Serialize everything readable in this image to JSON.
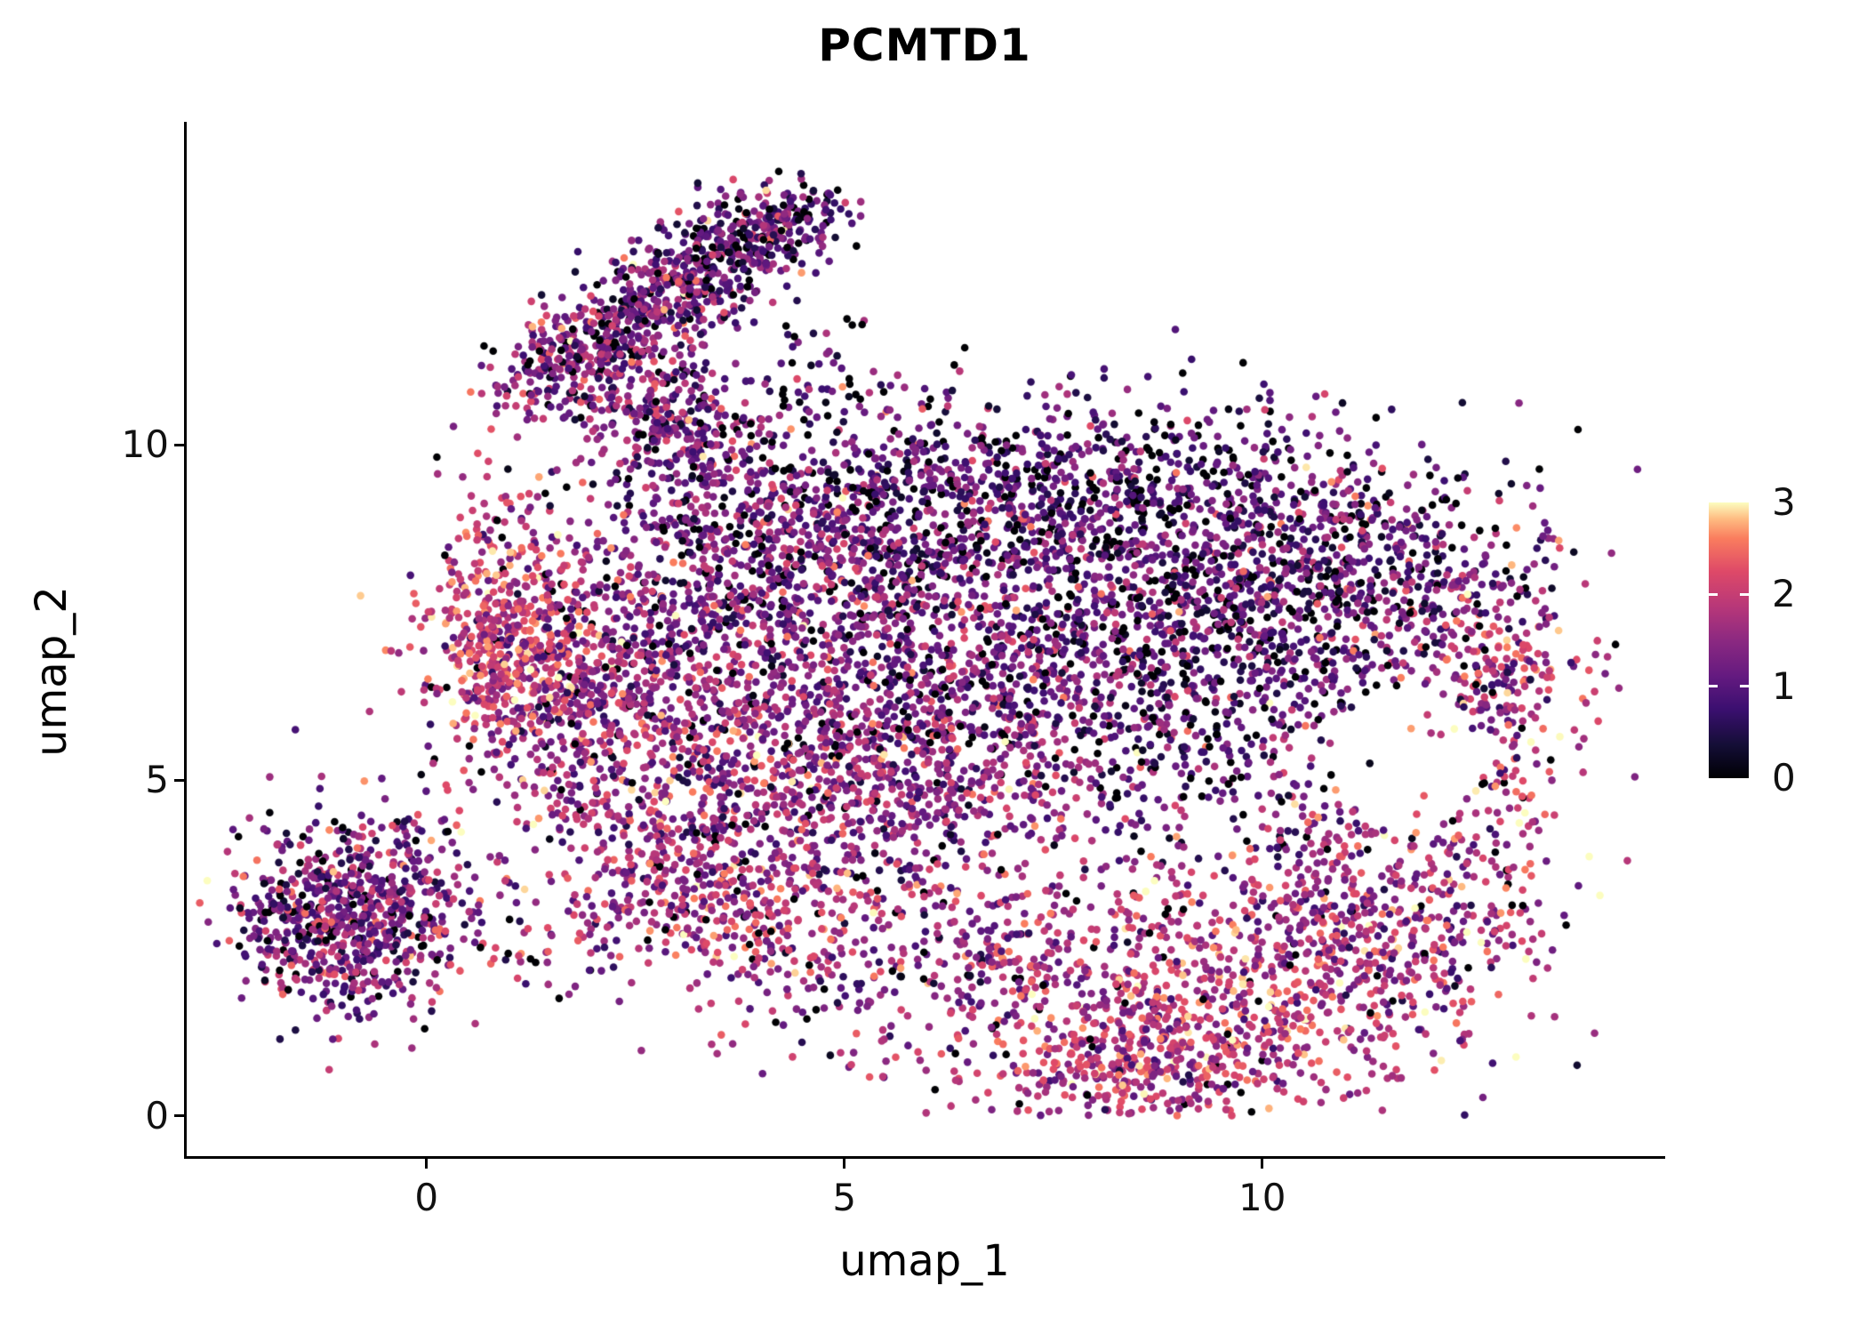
{
  "page": {
    "background": "#ffffff"
  },
  "chart_data": {
    "type": "scatter",
    "title": "PCMTD1",
    "xlabel": "umap_1",
    "ylabel": "umap_2",
    "x_tick_labels": [
      "0",
      "5",
      "10"
    ],
    "x_tick_values": [
      0,
      5,
      10
    ],
    "y_tick_labels": [
      "0",
      "5",
      "10"
    ],
    "y_tick_values": [
      0,
      5,
      10
    ],
    "xlim": [
      -2.87,
      14.79
    ],
    "ylim": [
      -0.6,
      14.77
    ],
    "grid": false,
    "legend": {
      "position": "right",
      "min": 0,
      "max": 3,
      "tick_labels": [
        "3",
        "2",
        "1",
        "0"
      ],
      "tick_values": [
        3,
        2,
        1,
        0
      ],
      "inner_tick_values": [
        1,
        2
      ]
    },
    "colormap_name": "magma",
    "colormap_stops": [
      [
        0.0,
        "#000004"
      ],
      [
        0.12,
        "#140e36"
      ],
      [
        0.25,
        "#3b0f70"
      ],
      [
        0.37,
        "#641a80"
      ],
      [
        0.5,
        "#8c2981"
      ],
      [
        0.62,
        "#b73779"
      ],
      [
        0.75,
        "#de4968"
      ],
      [
        0.87,
        "#fa7d5e"
      ],
      [
        0.94,
        "#febb81"
      ],
      [
        1.0,
        "#fcfdbf"
      ]
    ],
    "point_radius": 4.3,
    "seed": 20240612,
    "clusters": [
      {
        "cx": -0.9,
        "cy": 3.0,
        "sx": 0.72,
        "sy": 0.68,
        "rot": 0,
        "n": 750,
        "vm": 1.3,
        "vs": 0.65,
        "pz": 0.05
      },
      {
        "cx": 1.7,
        "cy": 2.6,
        "sx": 0.5,
        "sy": 0.45,
        "rot": 0,
        "n": 60,
        "vm": 1.5,
        "vs": 0.6,
        "pz": 0.05
      },
      {
        "cx": 1.75,
        "cy": 11.2,
        "sx": 0.5,
        "sy": 0.38,
        "rot": 35,
        "n": 230,
        "vm": 1.45,
        "vs": 0.6,
        "pz": 0.05
      },
      {
        "cx": 2.6,
        "cy": 12.0,
        "sx": 0.55,
        "sy": 0.38,
        "rot": 40,
        "n": 260,
        "vm": 1.2,
        "vs": 0.6,
        "pz": 0.07
      },
      {
        "cx": 3.5,
        "cy": 12.8,
        "sx": 0.6,
        "sy": 0.4,
        "rot": 35,
        "n": 280,
        "vm": 1.2,
        "vs": 0.6,
        "pz": 0.08
      },
      {
        "cx": 4.3,
        "cy": 13.2,
        "sx": 0.42,
        "sy": 0.3,
        "rot": 30,
        "n": 150,
        "vm": 1.1,
        "vs": 0.6,
        "pz": 0.1
      },
      {
        "cx": 2.75,
        "cy": 10.6,
        "sx": 0.5,
        "sy": 0.42,
        "rot": 20,
        "n": 160,
        "vm": 1.3,
        "vs": 0.6,
        "pz": 0.06
      },
      {
        "cx": 3.3,
        "cy": 9.9,
        "sx": 0.5,
        "sy": 0.4,
        "rot": 0,
        "n": 120,
        "vm": 1.2,
        "vs": 0.6,
        "pz": 0.08
      },
      {
        "cx": 4.9,
        "cy": 11.0,
        "sx": 0.5,
        "sy": 0.45,
        "rot": 0,
        "n": 55,
        "vm": 1.1,
        "vs": 0.6,
        "pz": 0.15
      },
      {
        "cx": 0.95,
        "cy": 7.1,
        "sx": 0.52,
        "sy": 1.0,
        "rot": 0,
        "n": 460,
        "vm": 2.1,
        "vs": 0.5,
        "pz": 0.02
      },
      {
        "cx": 2.3,
        "cy": 6.3,
        "sx": 1.0,
        "sy": 1.2,
        "rot": 0,
        "n": 780,
        "vm": 1.5,
        "vs": 0.6,
        "pz": 0.05
      },
      {
        "cx": 4.3,
        "cy": 8.6,
        "sx": 1.4,
        "sy": 0.9,
        "rot": 0,
        "n": 850,
        "vm": 1.25,
        "vs": 0.6,
        "pz": 0.09
      },
      {
        "cx": 7.8,
        "cy": 9.2,
        "sx": 1.9,
        "sy": 0.75,
        "rot": 0,
        "n": 900,
        "vm": 0.95,
        "vs": 0.6,
        "pz": 0.13
      },
      {
        "cx": 5.9,
        "cy": 6.5,
        "sx": 1.7,
        "sy": 1.2,
        "rot": 0,
        "n": 1150,
        "vm": 1.35,
        "vs": 0.6,
        "pz": 0.06
      },
      {
        "cx": 9.3,
        "cy": 7.0,
        "sx": 1.5,
        "sy": 1.3,
        "rot": 0,
        "n": 1050,
        "vm": 1.0,
        "vs": 0.65,
        "pz": 0.12
      },
      {
        "cx": 12.7,
        "cy": 5.9,
        "sx": 0.55,
        "sy": 1.2,
        "rot": -12,
        "n": 330,
        "vm": 1.9,
        "vs": 0.55,
        "pz": 0.03
      },
      {
        "cx": 11.3,
        "cy": 8.2,
        "sx": 1.1,
        "sy": 0.8,
        "rot": 0,
        "n": 430,
        "vm": 1.15,
        "vs": 0.6,
        "pz": 0.09
      },
      {
        "cx": 4.9,
        "cy": 4.7,
        "sx": 1.5,
        "sy": 0.8,
        "rot": 0,
        "n": 620,
        "vm": 1.5,
        "vs": 0.6,
        "pz": 0.05
      },
      {
        "cx": 3.4,
        "cy": 3.3,
        "sx": 0.9,
        "sy": 0.55,
        "rot": -20,
        "n": 340,
        "vm": 1.8,
        "vs": 0.55,
        "pz": 0.03
      },
      {
        "cx": 6.3,
        "cy": 2.4,
        "sx": 1.6,
        "sy": 0.8,
        "rot": 8,
        "n": 390,
        "vm": 1.5,
        "vs": 0.6,
        "pz": 0.06
      },
      {
        "cx": 9.4,
        "cy": 1.6,
        "sx": 1.5,
        "sy": 0.85,
        "rot": 10,
        "n": 800,
        "vm": 1.9,
        "vs": 0.55,
        "pz": 0.03
      },
      {
        "cx": 8.4,
        "cy": 0.6,
        "sx": 0.8,
        "sy": 0.35,
        "rot": 0,
        "n": 180,
        "vm": 1.8,
        "vs": 0.55,
        "pz": 0.04
      },
      {
        "cx": 11.4,
        "cy": 3.1,
        "sx": 1.1,
        "sy": 0.9,
        "rot": -30,
        "n": 460,
        "vm": 1.6,
        "vs": 0.6,
        "pz": 0.05
      }
    ],
    "holes": [
      {
        "cx": 11.75,
        "cy": 5.35,
        "rx": 0.9,
        "ry": 1.05,
        "keep": 0.05
      }
    ]
  }
}
